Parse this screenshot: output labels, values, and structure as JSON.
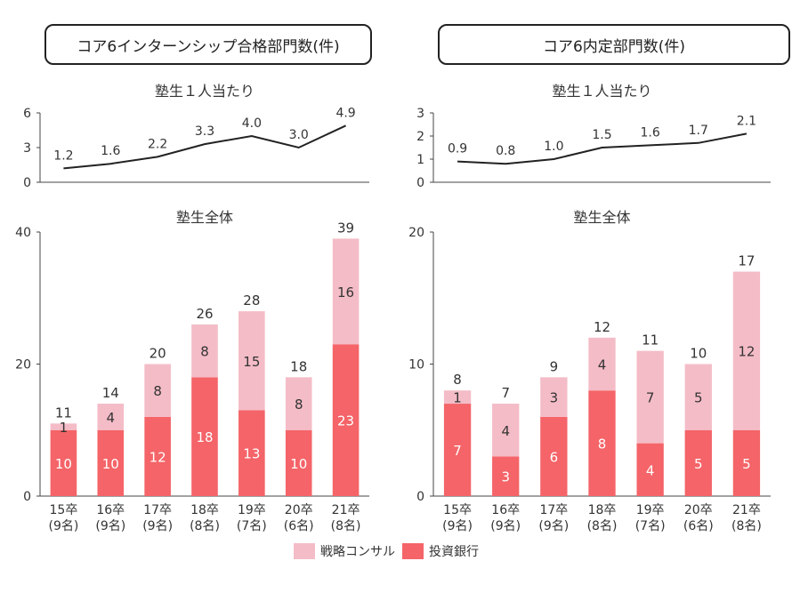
{
  "titles": {
    "left": "コア6インターンシップ合格部門数(件)",
    "right": "コア6内定部門数(件)"
  },
  "legend": {
    "consulting": "戦略コンサル",
    "ib": "投資銀行"
  },
  "colors": {
    "consulting": "#f4bcc7",
    "ib": "#f46468",
    "line": "#222222",
    "axis": "#444444"
  },
  "chart_data": [
    {
      "type": "line",
      "panel": "left-top",
      "title": "塾生１人当たり",
      "categories": [
        "15卒\n(9名)",
        "16卒\n(9名)",
        "17卒\n(9名)",
        "18卒\n(8名)",
        "19卒\n(7名)",
        "20卒\n(6名)",
        "21卒\n(8名)"
      ],
      "values": [
        1.2,
        1.6,
        2.2,
        3.3,
        4.0,
        3.0,
        4.9
      ],
      "data_labels": [
        "1.2",
        "1.6",
        "2.2",
        "3.3",
        "4.0",
        "3.0",
        "4.9"
      ],
      "ylim": [
        0,
        6
      ],
      "yticks": [
        "0",
        "3",
        "6"
      ]
    },
    {
      "type": "bar",
      "stacked": true,
      "panel": "left-bottom",
      "title": "塾生全体",
      "categories": [
        "15卒\n(9名)",
        "16卒\n(9名)",
        "17卒\n(9名)",
        "18卒\n(8名)",
        "19卒\n(7名)",
        "20卒\n(6名)",
        "21卒\n(8名)"
      ],
      "series": [
        {
          "name": "投資銀行",
          "values": [
            10,
            10,
            12,
            18,
            13,
            10,
            23
          ],
          "labels": [
            "10",
            "10",
            "12",
            "18",
            "13",
            "10",
            "23"
          ]
        },
        {
          "name": "戦略コンサル",
          "values": [
            1,
            4,
            8,
            8,
            15,
            8,
            16
          ],
          "labels": [
            "1",
            "4",
            "8",
            "8",
            "15",
            "8",
            "16"
          ]
        }
      ],
      "totals": [
        "11",
        "14",
        "20",
        "26",
        "28",
        "18",
        "39"
      ],
      "ylim": [
        0,
        40
      ],
      "yticks": [
        "0",
        "20",
        "40"
      ]
    },
    {
      "type": "line",
      "panel": "right-top",
      "title": "塾生１人当たり",
      "categories": [
        "15卒\n(9名)",
        "16卒\n(9名)",
        "17卒\n(9名)",
        "18卒\n(8名)",
        "19卒\n(7名)",
        "20卒\n(6名)",
        "21卒\n(8名)"
      ],
      "values": [
        0.9,
        0.8,
        1.0,
        1.5,
        1.6,
        1.7,
        2.1
      ],
      "data_labels": [
        "0.9",
        "0.8",
        "1.0",
        "1.5",
        "1.6",
        "1.7",
        "2.1"
      ],
      "ylim": [
        0,
        3
      ],
      "yticks": [
        "0",
        "1",
        "2",
        "3"
      ]
    },
    {
      "type": "bar",
      "stacked": true,
      "panel": "right-bottom",
      "title": "塾生全体",
      "categories": [
        "15卒\n(9名)",
        "16卒\n(9名)",
        "17卒\n(9名)",
        "18卒\n(8名)",
        "19卒\n(7名)",
        "20卒\n(6名)",
        "21卒\n(8名)"
      ],
      "series": [
        {
          "name": "投資銀行",
          "values": [
            7,
            3,
            6,
            8,
            4,
            5,
            5
          ],
          "labels": [
            "7",
            "3",
            "6",
            "8",
            "4",
            "5",
            "5"
          ]
        },
        {
          "name": "戦略コンサル",
          "values": [
            1,
            4,
            3,
            4,
            7,
            5,
            12
          ],
          "labels": [
            "1",
            "4",
            "3",
            "4",
            "7",
            "5",
            "12"
          ]
        }
      ],
      "totals": [
        "8",
        "7",
        "9",
        "12",
        "11",
        "10",
        "17"
      ],
      "ylim": [
        0,
        20
      ],
      "yticks": [
        "0",
        "10",
        "20"
      ]
    }
  ]
}
